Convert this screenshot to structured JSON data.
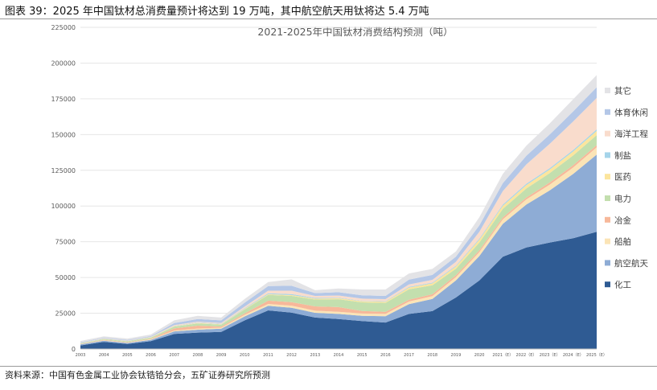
{
  "figure_title": "图表 39：2025 年中国钛材总消费量预计将达到 19 万吨，其中航空航天用钛将达 5.4 万吨",
  "source": "资料来源：中国有色金属工业协会钛锆铪分会，五矿证券研究所预测",
  "chart_data": {
    "type": "area",
    "stacked": true,
    "title": "2021-2025年中国钛材消费结构预测（吨）",
    "xlabel": "",
    "ylabel": "",
    "ylim": [
      0,
      225000
    ],
    "yticks": [
      "0",
      "25000",
      "50000",
      "75000",
      "100000",
      "125000",
      "150000",
      "175000",
      "200000",
      "225000"
    ],
    "grid": true,
    "legend_position": "right",
    "x": [
      "2003",
      "2004",
      "2005",
      "2006",
      "2007",
      "2008",
      "2009",
      "2010",
      "2011",
      "2012",
      "2013",
      "2014",
      "2015",
      "2016",
      "2017",
      "2018",
      "2019",
      "2020",
      "2021（E）",
      "2022（E）",
      "2023（E）",
      "2024（E）",
      "2025（E）"
    ],
    "series": [
      {
        "name": "化工",
        "color": "#2f5b93",
        "values": [
          2500,
          5000,
          3500,
          5500,
          10500,
          11500,
          12000,
          20000,
          27000,
          25500,
          22000,
          21000,
          19500,
          18500,
          24500,
          26500,
          36000,
          48000,
          64500,
          71000,
          74500,
          77500,
          82000
        ]
      },
      {
        "name": "航空航天",
        "color": "#8eacd5",
        "values": [
          700,
          800,
          700,
          900,
          1800,
          2000,
          2200,
          2800,
          3200,
          3300,
          3300,
          3500,
          3700,
          4400,
          6900,
          8500,
          12000,
          17000,
          23000,
          30000,
          36500,
          45000,
          54000
        ]
      },
      {
        "name": "船舶",
        "color": "#fbe4b6",
        "values": [
          200,
          300,
          300,
          400,
          600,
          800,
          700,
          1100,
          1300,
          1500,
          1500,
          1500,
          1600,
          1600,
          1800,
          2000,
          2300,
          2800,
          3200,
          3600,
          4000,
          4500,
          5000
        ]
      },
      {
        "name": "冶金",
        "color": "#f7b89a",
        "values": [
          200,
          300,
          300,
          400,
          1500,
          2000,
          800,
          1000,
          2300,
          2500,
          3000,
          3300,
          1800,
          1500,
          1300,
          1300,
          1300,
          1200,
          1300,
          1400,
          1500,
          1600,
          1600
        ]
      },
      {
        "name": "电力",
        "color": "#c3dfae",
        "values": [
          400,
          600,
          600,
          700,
          1300,
          1600,
          1300,
          2800,
          4000,
          4300,
          4800,
          5500,
          6000,
          6300,
          7300,
          6300,
          4500,
          5500,
          6000,
          6300,
          6500,
          6800,
          7000
        ]
      },
      {
        "name": "医药",
        "color": "#fce59d",
        "values": [
          100,
          100,
          100,
          200,
          300,
          300,
          300,
          400,
          500,
          600,
          600,
          700,
          800,
          800,
          1200,
          1300,
          1600,
          2000,
          2200,
          2400,
          2600,
          2800,
          3000
        ]
      },
      {
        "name": "制盐",
        "color": "#a5d4ea",
        "values": [
          100,
          100,
          100,
          100,
          200,
          300,
          300,
          500,
          700,
          700,
          500,
          400,
          300,
          300,
          400,
          500,
          600,
          700,
          800,
          900,
          900,
          1000,
          1000
        ]
      },
      {
        "name": "海洋工程",
        "color": "#f9dccc",
        "values": [
          200,
          300,
          300,
          300,
          500,
          600,
          600,
          1100,
          1800,
          2400,
          1400,
          1500,
          1500,
          1500,
          1700,
          2000,
          2700,
          4800,
          9500,
          13500,
          17000,
          20000,
          22000
        ]
      },
      {
        "name": "体育休闲",
        "color": "#b4c7e7",
        "values": [
          300,
          400,
          400,
          500,
          1400,
          1800,
          1800,
          2700,
          3200,
          3400,
          2000,
          2300,
          2400,
          2200,
          3400,
          3400,
          3500,
          4500,
          5500,
          6000,
          6500,
          7000,
          7500
        ]
      },
      {
        "name": "其它",
        "color": "#e3e3e6",
        "values": [
          900,
          1000,
          1000,
          1100,
          1900,
          2300,
          2000,
          2600,
          2800,
          4500,
          2000,
          2600,
          4000,
          4500,
          4300,
          4200,
          3700,
          5700,
          6500,
          7100,
          7800,
          8500,
          8500
        ]
      }
    ]
  }
}
